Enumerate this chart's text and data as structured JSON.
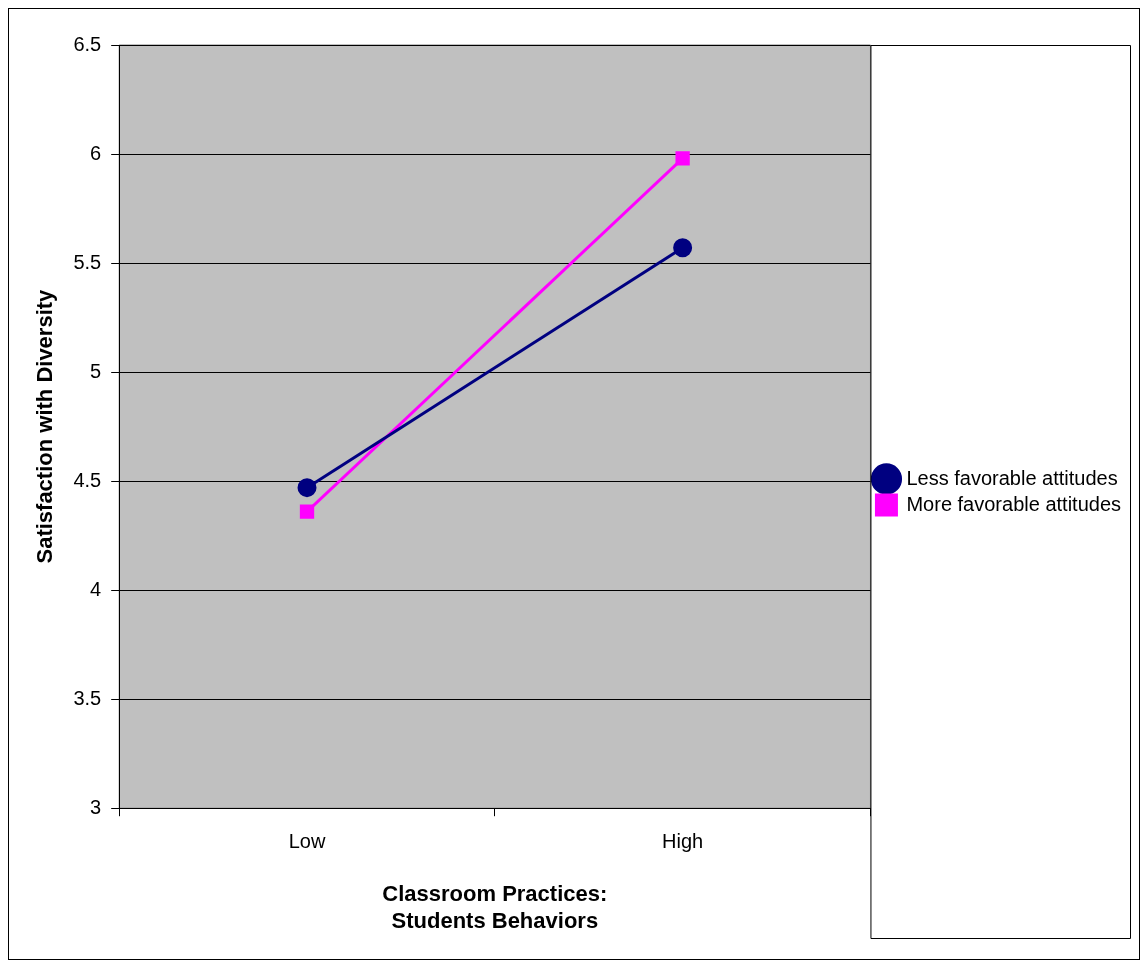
{
  "chart_data": {
    "type": "line",
    "xlabel": "Classroom Practices:\nStudents Behaviors",
    "ylabel": "Satisfaction with Diversity",
    "categories": [
      "Low",
      "High"
    ],
    "series": [
      {
        "name": "Less favorable attitudes",
        "color": "#000080",
        "values": [
          4.47,
          5.57
        ],
        "marker": "circle"
      },
      {
        "name": "More favorable attitudes",
        "color": "#ff00ff",
        "values": [
          4.36,
          5.98
        ],
        "marker": "square"
      }
    ],
    "ylim": [
      3,
      6.5
    ],
    "yticks": [
      3,
      3.5,
      4,
      4.5,
      5,
      5.5,
      6,
      6.5
    ],
    "grid": "y",
    "legend": "right",
    "line_style": "solid"
  }
}
